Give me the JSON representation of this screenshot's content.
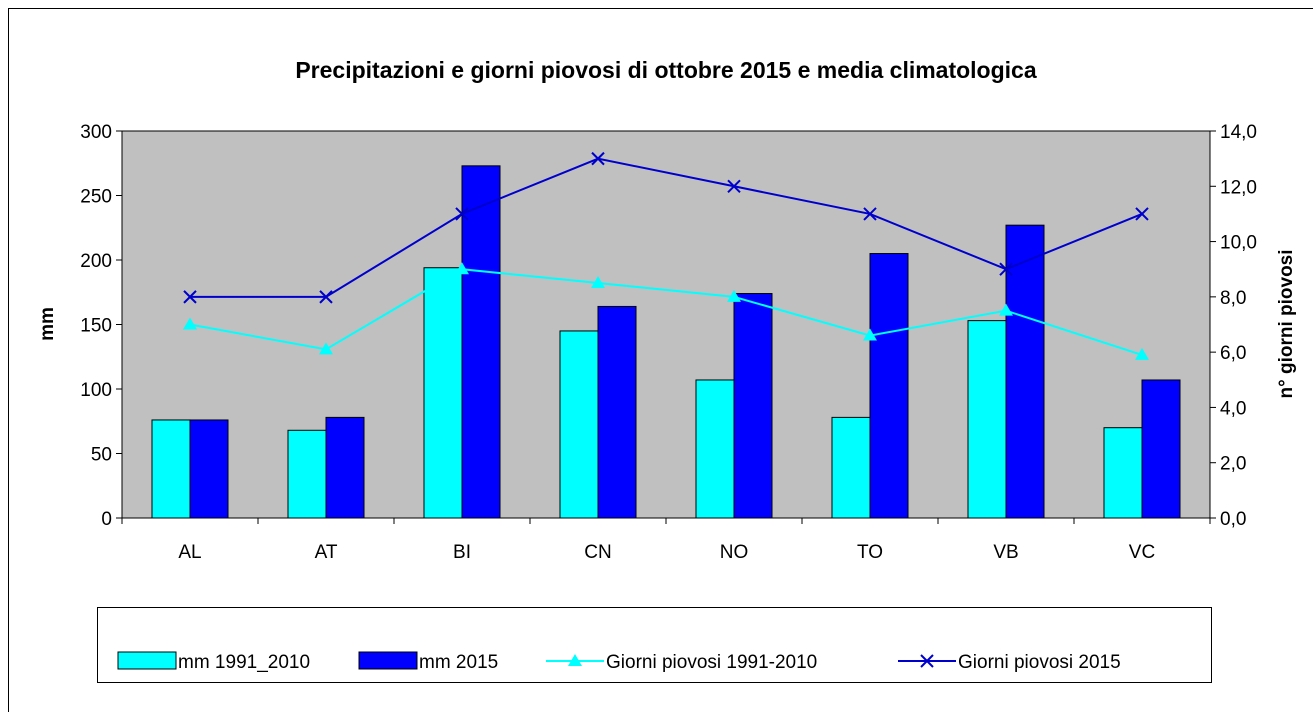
{
  "chart_data": {
    "type": "bar",
    "title": "Precipitazioni e giorni piovosi di ottobre 2015 e media climatologica",
    "y_label": "mm",
    "y2_label": "n° giorni piovosi",
    "categories": [
      "AL",
      "AT",
      "BI",
      "CN",
      "NO",
      "TO",
      "VB",
      "VC"
    ],
    "series": [
      {
        "name": "mm 1991_2010",
        "type": "bar",
        "color": "#00ffff",
        "values": [
          76,
          68,
          194,
          145,
          107,
          78,
          153,
          70
        ]
      },
      {
        "name": "mm 2015",
        "type": "bar",
        "color": "#0000ff",
        "values": [
          76,
          78,
          273,
          164,
          174,
          205,
          227,
          107
        ]
      },
      {
        "name": "Giorni piovosi 1991-2010",
        "type": "line",
        "axis": "y2",
        "color": "#00ffff",
        "marker": "triangle",
        "values": [
          7.0,
          6.1,
          9.0,
          8.5,
          8.0,
          6.6,
          7.5,
          5.9
        ]
      },
      {
        "name": "Giorni piovosi 2015",
        "type": "line",
        "axis": "y2",
        "color": "#0000cc",
        "marker": "x",
        "values": [
          8,
          8,
          11,
          13,
          12,
          11,
          9,
          11
        ]
      }
    ],
    "ylim": [
      0,
      300
    ],
    "yticks": [
      0,
      50,
      100,
      150,
      200,
      250,
      300
    ],
    "y2lim": [
      0,
      14
    ],
    "y2ticks": [
      {
        "value": 0,
        "label": "0,0"
      },
      {
        "value": 2,
        "label": "2,0"
      },
      {
        "value": 4,
        "label": "4,0"
      },
      {
        "value": 6,
        "label": "6,0"
      },
      {
        "value": 8,
        "label": "8,0"
      },
      {
        "value": 10,
        "label": "10,0"
      },
      {
        "value": 12,
        "label": "12,0"
      },
      {
        "value": 14,
        "label": "14,0"
      }
    ],
    "grid": false,
    "plot_background": "#c0c0c0",
    "legend": "bottom"
  }
}
